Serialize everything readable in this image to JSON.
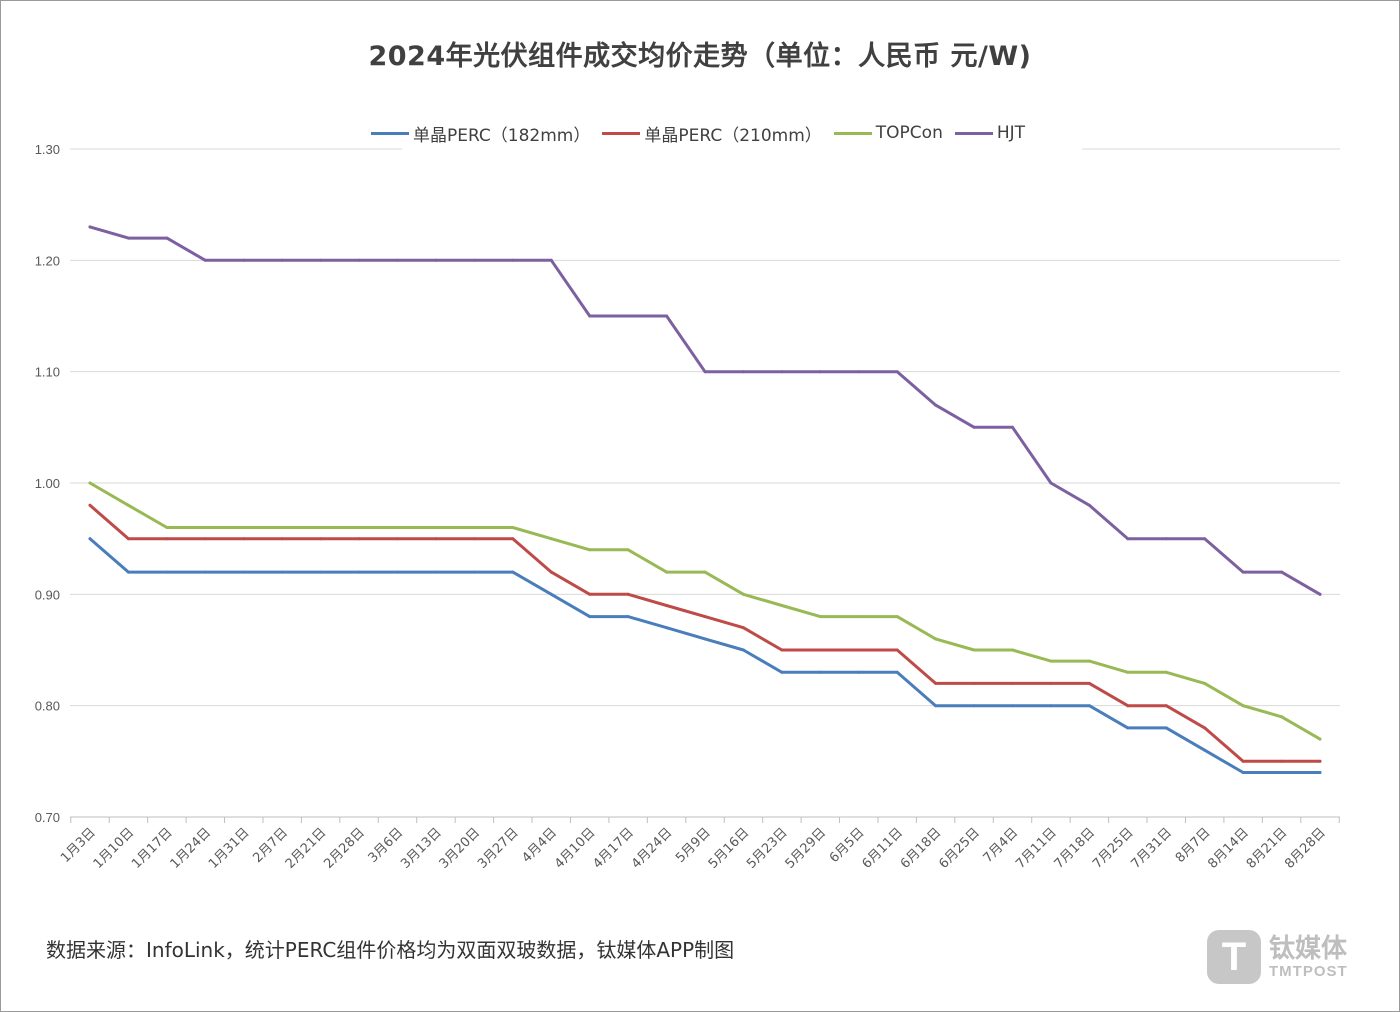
{
  "chart_data": {
    "type": "line",
    "title": "2024年光伏组件成交均价走势（单位：人民币 元/W)",
    "xlabel": "",
    "ylabel": "",
    "ylim": [
      0.7,
      1.3
    ],
    "yticks": [
      "1.30",
      "1.20",
      "1.10",
      "1.00",
      "0.90",
      "0.80",
      "0.70"
    ],
    "ytick_values": [
      1.3,
      1.2,
      1.1,
      1.0,
      0.9,
      0.8,
      0.7
    ],
    "grid": true,
    "legend_position": "top-center",
    "categories": [
      "1月3日",
      "1月10日",
      "1月17日",
      "1月24日",
      "1月31日",
      "2月7日",
      "2月21日",
      "2月28日",
      "3月6日",
      "3月13日",
      "3月20日",
      "3月27日",
      "4月4日",
      "4月10日",
      "4月17日",
      "4月24日",
      "5月9日",
      "5月16日",
      "5月23日",
      "5月29日",
      "6月5日",
      "6月11日",
      "6月18日",
      "6月25日",
      "7月4日",
      "7月11日",
      "7月18日",
      "7月25日",
      "7月31日",
      "8月7日",
      "8月14日",
      "8月21日",
      "8月28日"
    ],
    "series": [
      {
        "name": "单晶PERC（182mm）",
        "color": "#4a7ebb",
        "values": [
          0.95,
          0.92,
          0.92,
          0.92,
          0.92,
          0.92,
          0.92,
          0.92,
          0.92,
          0.92,
          0.92,
          0.92,
          0.9,
          0.88,
          0.88,
          0.87,
          0.86,
          0.85,
          0.83,
          0.83,
          0.83,
          0.83,
          0.8,
          0.8,
          0.8,
          0.8,
          0.8,
          0.78,
          0.78,
          0.76,
          0.74,
          0.74,
          0.74
        ]
      },
      {
        "name": "单晶PERC（210mm）",
        "color": "#be4b48",
        "values": [
          0.98,
          0.95,
          0.95,
          0.95,
          0.95,
          0.95,
          0.95,
          0.95,
          0.95,
          0.95,
          0.95,
          0.95,
          0.92,
          0.9,
          0.9,
          0.89,
          0.88,
          0.87,
          0.85,
          0.85,
          0.85,
          0.85,
          0.82,
          0.82,
          0.82,
          0.82,
          0.82,
          0.8,
          0.8,
          0.78,
          0.75,
          0.75,
          0.75
        ]
      },
      {
        "name": "TOPCon",
        "color": "#98b954",
        "values": [
          1.0,
          0.98,
          0.96,
          0.96,
          0.96,
          0.96,
          0.96,
          0.96,
          0.96,
          0.96,
          0.96,
          0.96,
          0.95,
          0.94,
          0.94,
          0.92,
          0.92,
          0.9,
          0.89,
          0.88,
          0.88,
          0.88,
          0.86,
          0.85,
          0.85,
          0.84,
          0.84,
          0.83,
          0.83,
          0.82,
          0.8,
          0.79,
          0.77
        ]
      },
      {
        "name": "HJT",
        "color": "#7d60a0",
        "values": [
          1.23,
          1.22,
          1.22,
          1.2,
          1.2,
          1.2,
          1.2,
          1.2,
          1.2,
          1.2,
          1.2,
          1.2,
          1.2,
          1.15,
          1.15,
          1.15,
          1.1,
          1.1,
          1.1,
          1.1,
          1.1,
          1.1,
          1.07,
          1.05,
          1.05,
          1.0,
          0.98,
          0.95,
          0.95,
          0.95,
          0.92,
          0.92,
          0.9
        ]
      }
    ]
  },
  "footer": {
    "source_note": "数据来源：InfoLink，统计PERC组件价格均为双面双玻数据，钛媒体APP制图"
  },
  "watermark": {
    "logo_letter": "T",
    "name_cn": "钛媒体",
    "name_en": "TMTPOST"
  }
}
